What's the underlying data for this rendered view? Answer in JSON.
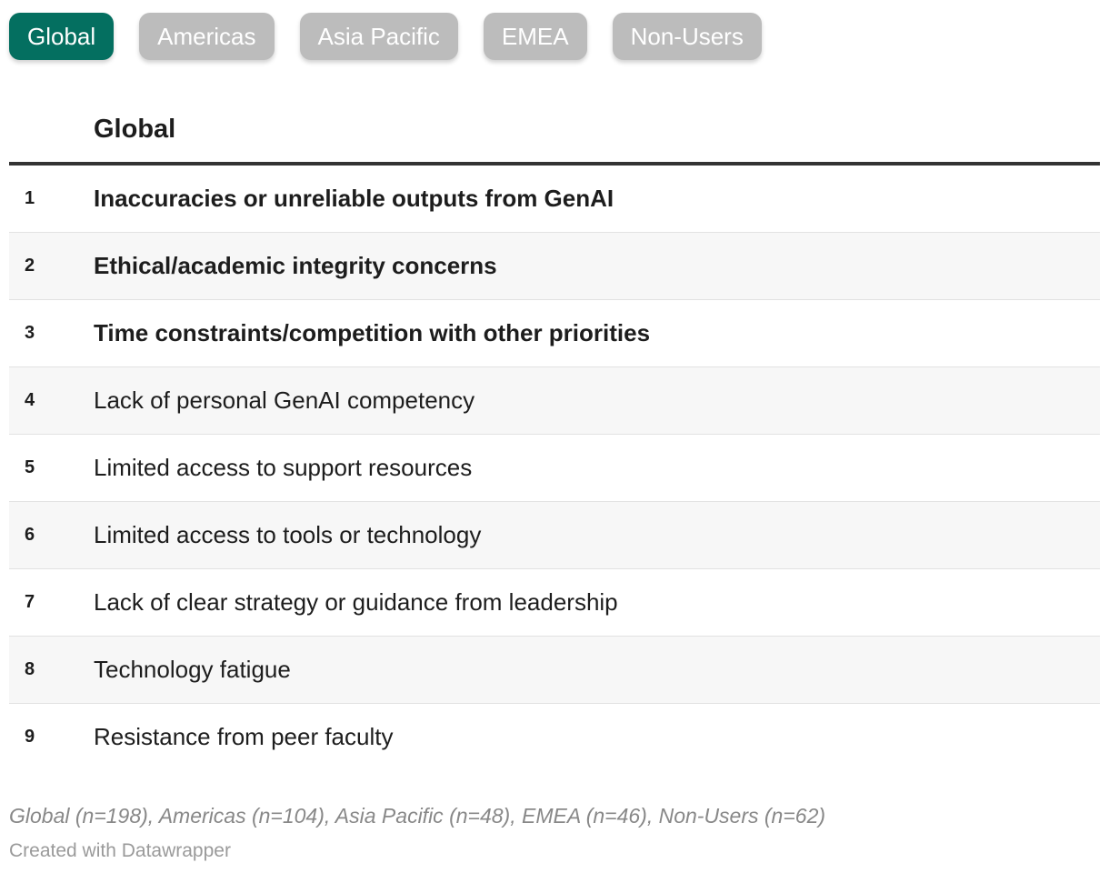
{
  "tabs": [
    {
      "label": "Global",
      "active": true
    },
    {
      "label": "Americas",
      "active": false
    },
    {
      "label": "Asia Pacific",
      "active": false
    },
    {
      "label": "EMEA",
      "active": false
    },
    {
      "label": "Non-Users",
      "active": false
    }
  ],
  "table": {
    "column_title": "Global",
    "rows": [
      {
        "rank": "1",
        "label": "Inaccuracies or unreliable outputs from GenAI",
        "bold": true
      },
      {
        "rank": "2",
        "label": "Ethical/academic integrity concerns",
        "bold": true
      },
      {
        "rank": "3",
        "label": "Time constraints/competition with other priorities",
        "bold": true
      },
      {
        "rank": "4",
        "label": "Lack of personal GenAI competency",
        "bold": false
      },
      {
        "rank": "5",
        "label": "Limited access to support resources",
        "bold": false
      },
      {
        "rank": "6",
        "label": "Limited access to tools or technology",
        "bold": false
      },
      {
        "rank": "7",
        "label": "Lack of clear strategy or guidance from leadership",
        "bold": false
      },
      {
        "rank": "8",
        "label": "Technology fatigue",
        "bold": false
      },
      {
        "rank": "9",
        "label": "Resistance from peer faculty",
        "bold": false
      }
    ]
  },
  "footnote": "Global (n=198), Americas (n=104), Asia Pacific (n=48), EMEA (n=46), Non-Users (n=62)",
  "credit": "Created with Datawrapper",
  "colors": {
    "active_tab": "#046f60",
    "inactive_tab": "#bcbcbc"
  }
}
